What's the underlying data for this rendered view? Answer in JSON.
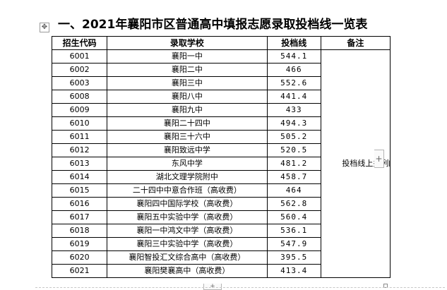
{
  "title": "一、2021年襄阳市区普通高中填报志愿录取投档线一览表",
  "table": {
    "headers": {
      "code": "招生代码",
      "school": "录取学校",
      "score": "投档线",
      "note": "备注"
    },
    "rows": [
      {
        "code": "6001",
        "school": "襄阳一中",
        "score": "544.1"
      },
      {
        "code": "6002",
        "school": "襄阳二中",
        "score": "466"
      },
      {
        "code": "6003",
        "school": "襄阳三中",
        "score": "552.6"
      },
      {
        "code": "6008",
        "school": "襄阳八中",
        "score": "441.4"
      },
      {
        "code": "6009",
        "school": "襄阳九中",
        "score": "433"
      },
      {
        "code": "6010",
        "school": "襄阳二十四中",
        "score": "494.3"
      },
      {
        "code": "6011",
        "school": "襄阳三十六中",
        "score": "505.2"
      },
      {
        "code": "6012",
        "school": "襄阳致远中学",
        "score": "520.5"
      },
      {
        "code": "6013",
        "school": "东风中学",
        "score": "481.2"
      },
      {
        "code": "6014",
        "school": "湖北文理学院附中",
        "score": "458.7"
      },
      {
        "code": "6015",
        "school": "二十四中中意合作班（高收费）",
        "score": "464"
      },
      {
        "code": "6016",
        "school": "襄阳四中国际学校（高收费）",
        "score": "562.8"
      },
      {
        "code": "6017",
        "school": "襄阳五中实验中学（高收费）",
        "score": "560.4"
      },
      {
        "code": "6018",
        "school": "襄阳一中鸿文中学（高收费）",
        "score": "536.1"
      },
      {
        "code": "6019",
        "school": "襄阳三中实验中学（高收费）",
        "score": "547.9"
      },
      {
        "code": "6020",
        "school": "襄阳智投汇文综合高中（高收费）",
        "score": "395.5"
      },
      {
        "code": "6021",
        "school": "襄阳樊襄高中（高收费）",
        "score": "413.4"
      }
    ],
    "note": "投档线上并列的学生语数英分数高的优先"
  },
  "controls": {
    "move_icon": "✥",
    "add_column": "+",
    "add_row": "+"
  }
}
